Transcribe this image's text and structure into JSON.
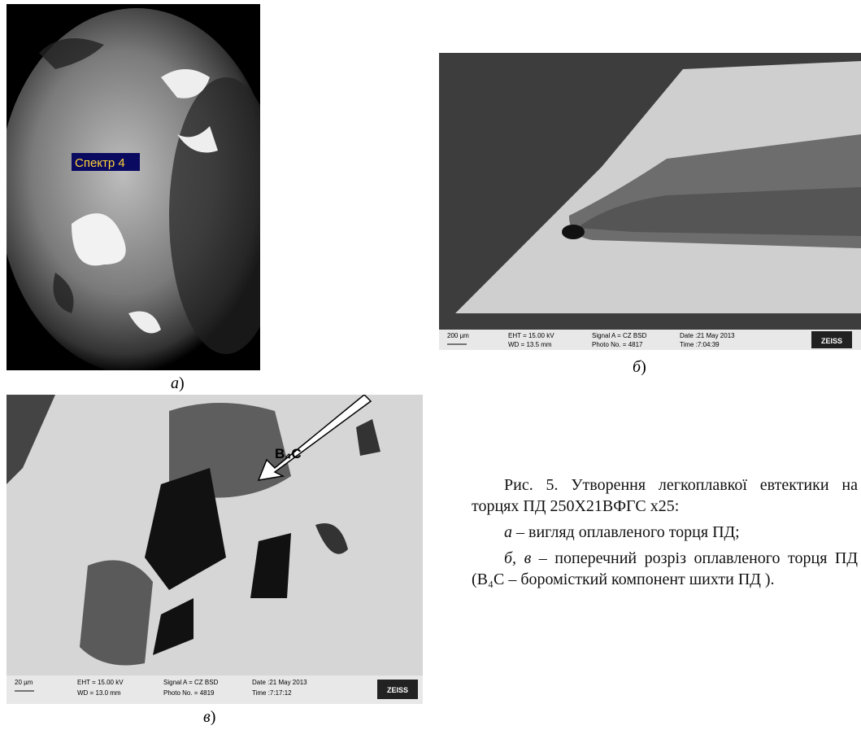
{
  "figure_a": {
    "spectrum_label": "Спектр 4",
    "label": "а",
    "label_suffix": ")"
  },
  "figure_b": {
    "label": "б",
    "label_suffix": ")",
    "info_bar": {
      "scale": "200 µm",
      "eht": "EHT = 15.00 kV",
      "wd": "WD = 13.5 mm",
      "signal": "Signal A = CZ BSD",
      "photo": "Photo No. = 4817",
      "date": "Date :21 May 2013",
      "time": "Time :7:04:39",
      "brand": "ZEISS"
    }
  },
  "figure_c": {
    "label": "в",
    "label_suffix": ")",
    "arrow_label": "B₄C",
    "info_bar": {
      "scale": "20 µm",
      "eht": "EHT = 15.00 kV",
      "wd": "WD = 13.0 mm",
      "signal": "Signal A = CZ BSD",
      "photo": "Photo No. = 4819",
      "date": "Date :21 May 2013",
      "time": "Time :7:17:12",
      "brand": "ZEISS"
    }
  },
  "caption": {
    "title": "Рис. 5. Утворення легкоплавкої евтектики на торцях ПД 250Х21ВФГС х25:",
    "items": [
      {
        "label": "а",
        "text": " – вигляд оплавленого торця ПД;"
      },
      {
        "label": "б, в",
        "text": " – поперечний розріз оплавленого торця ПД (B₄C – боромісткий компонент шихти ПД )."
      }
    ]
  }
}
